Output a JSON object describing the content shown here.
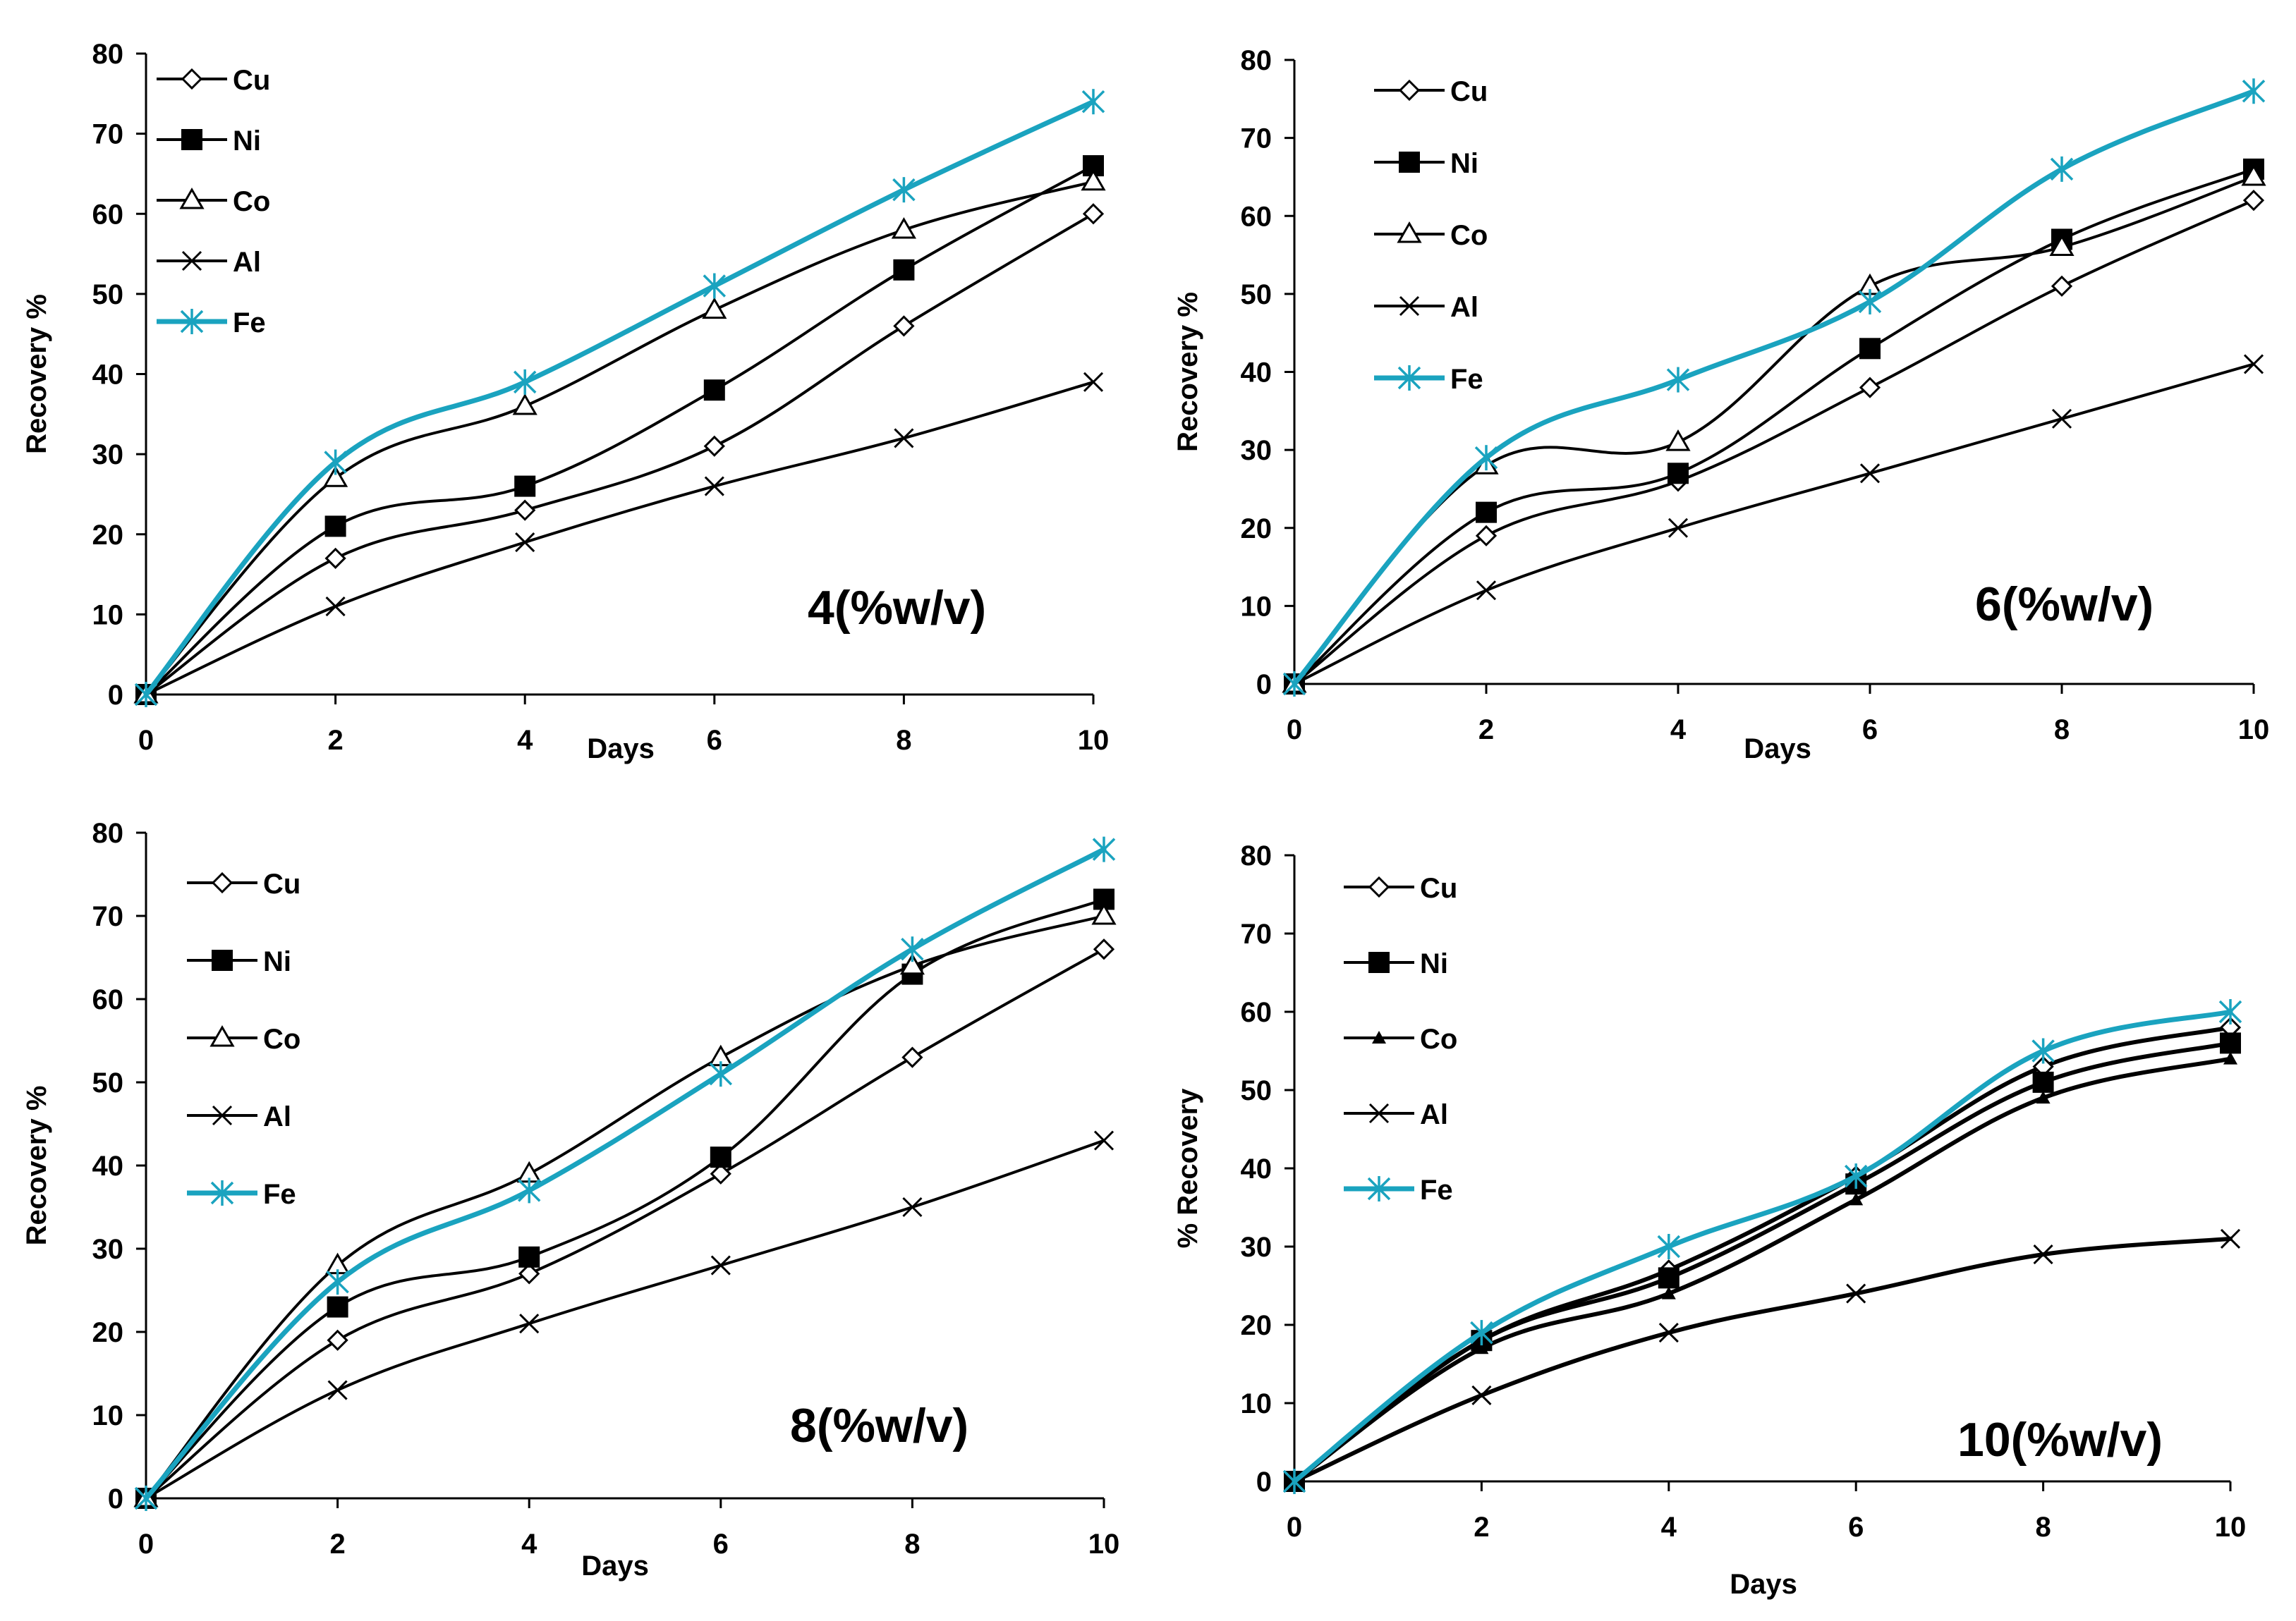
{
  "chart_data": [
    {
      "type": "line",
      "title": "",
      "annotation": "4(%w/v)",
      "xlabel": "Days",
      "ylabel": "Recovery %",
      "x": [
        0,
        2,
        4,
        6,
        8,
        10
      ],
      "xlim": [
        0,
        10
      ],
      "ylim": [
        0,
        80
      ],
      "xticks": [
        0,
        2,
        4,
        6,
        8,
        10
      ],
      "yticks": [
        0,
        10,
        20,
        30,
        40,
        50,
        60,
        70,
        80
      ],
      "grid": false,
      "legend_position": "top-left",
      "series": [
        {
          "name": "Cu",
          "marker": "diamond-open",
          "color": "#000000",
          "values": [
            0,
            17,
            23,
            31,
            46,
            60
          ]
        },
        {
          "name": "Ni",
          "marker": "square-filled",
          "color": "#000000",
          "values": [
            0,
            21,
            26,
            38,
            53,
            66
          ]
        },
        {
          "name": "Co",
          "marker": "triangle-open",
          "color": "#000000",
          "values": [
            0,
            27,
            36,
            48,
            58,
            64
          ]
        },
        {
          "name": "Al",
          "marker": "x",
          "color": "#000000",
          "values": [
            0,
            11,
            19,
            26,
            32,
            39
          ]
        },
        {
          "name": "Fe",
          "marker": "asterisk",
          "color": "#1aa3bf",
          "values": [
            0,
            29,
            39,
            51,
            63,
            74
          ]
        }
      ]
    },
    {
      "type": "line",
      "title": "",
      "annotation": "6(%w/v)",
      "xlabel": "Days",
      "ylabel": "Recovery %",
      "x": [
        0,
        2,
        4,
        6,
        8,
        10
      ],
      "xlim": [
        0,
        10
      ],
      "ylim": [
        0,
        80
      ],
      "xticks": [
        0,
        2,
        4,
        6,
        8,
        10
      ],
      "yticks": [
        0,
        10,
        20,
        30,
        40,
        50,
        60,
        70,
        80
      ],
      "grid": false,
      "legend_position": "top-left",
      "series": [
        {
          "name": "Cu",
          "marker": "diamond-open",
          "color": "#000000",
          "values": [
            0,
            19,
            26,
            38,
            51,
            62
          ]
        },
        {
          "name": "Ni",
          "marker": "square-filled",
          "color": "#000000",
          "values": [
            0,
            22,
            27,
            43,
            57,
            66
          ]
        },
        {
          "name": "Co",
          "marker": "triangle-open",
          "color": "#000000",
          "values": [
            0,
            28,
            31,
            51,
            56,
            65
          ]
        },
        {
          "name": "Al",
          "marker": "x",
          "color": "#000000",
          "values": [
            0,
            12,
            20,
            27,
            34,
            41
          ]
        },
        {
          "name": "Fe",
          "marker": "asterisk",
          "color": "#1aa3bf",
          "values": [
            0,
            29,
            39,
            49,
            66,
            76
          ]
        }
      ]
    },
    {
      "type": "line",
      "title": "",
      "annotation": "8(%w/v)",
      "xlabel": "Days",
      "ylabel": "Recovery %",
      "x": [
        0,
        2,
        4,
        6,
        8,
        10
      ],
      "xlim": [
        0,
        10
      ],
      "ylim": [
        0,
        80
      ],
      "xticks": [
        0,
        2,
        4,
        6,
        8,
        10
      ],
      "yticks": [
        0,
        10,
        20,
        30,
        40,
        50,
        60,
        70,
        80
      ],
      "grid": false,
      "legend_position": "top-left",
      "series": [
        {
          "name": "Cu",
          "marker": "diamond-open",
          "color": "#000000",
          "values": [
            0,
            19,
            27,
            39,
            53,
            66
          ]
        },
        {
          "name": "Ni",
          "marker": "square-filled",
          "color": "#000000",
          "values": [
            0,
            23,
            29,
            41,
            63,
            72
          ]
        },
        {
          "name": "Co",
          "marker": "triangle-open",
          "color": "#000000",
          "values": [
            0,
            28,
            39,
            53,
            64,
            70
          ]
        },
        {
          "name": "Al",
          "marker": "x",
          "color": "#000000",
          "values": [
            0,
            13,
            21,
            28,
            35,
            43
          ]
        },
        {
          "name": "Fe",
          "marker": "asterisk",
          "color": "#1aa3bf",
          "values": [
            0,
            26,
            37,
            51,
            66,
            78
          ]
        }
      ]
    },
    {
      "type": "line",
      "title": "",
      "annotation": "10(%w/v)",
      "xlabel": "Days",
      "ylabel": "% Recovery",
      "x": [
        0,
        2,
        4,
        6,
        8,
        10
      ],
      "xlim": [
        0,
        10
      ],
      "ylim": [
        0,
        80
      ],
      "xticks": [
        0,
        2,
        4,
        6,
        8,
        10
      ],
      "yticks": [
        0,
        10,
        20,
        30,
        40,
        50,
        60,
        70,
        80
      ],
      "grid": false,
      "legend_position": "top-left",
      "series": [
        {
          "name": "Cu",
          "marker": "diamond-open",
          "color": "#000000",
          "values": [
            0,
            18,
            27,
            39,
            53,
            58
          ]
        },
        {
          "name": "Ni",
          "marker": "square-filled",
          "color": "#000000",
          "values": [
            0,
            18,
            26,
            38,
            51,
            56
          ]
        },
        {
          "name": "Co",
          "marker": "triangle-small-filled",
          "color": "#000000",
          "values": [
            0,
            17,
            24,
            36,
            49,
            54
          ]
        },
        {
          "name": "Al",
          "marker": "x",
          "color": "#000000",
          "values": [
            0,
            11,
            19,
            24,
            29,
            31
          ]
        },
        {
          "name": "Fe",
          "marker": "asterisk",
          "color": "#1aa3bf",
          "values": [
            0,
            19,
            30,
            39,
            55,
            60
          ]
        }
      ]
    }
  ]
}
